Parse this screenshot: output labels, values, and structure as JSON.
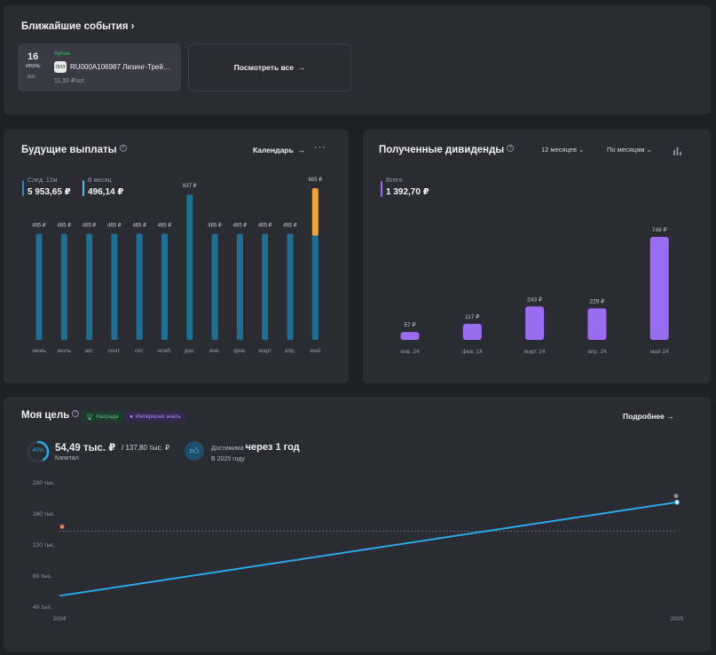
{
  "events": {
    "title": "Ближайшие события",
    "chevron": "›",
    "item": {
      "day": "16",
      "month": "июнь",
      "weekday": "вск",
      "type": "Купон",
      "ticker_logo": "ЛИЗ",
      "name": "RU000A106987 Лизинг-Трей…",
      "amount": "11,92 ₽/шт."
    },
    "see_all": "Посмотреть все",
    "arrow": "→"
  },
  "payouts": {
    "title": "Будущие выплаты",
    "calendar_label": "Календарь",
    "next12_label": "След. 12м",
    "next12_value": "5 953,65 ₽",
    "monthly_label": "В месяц",
    "monthly_value": "496,14 ₽"
  },
  "dividends": {
    "title": "Полученные дивиденды",
    "period_select": "12 месяцев",
    "group_select": "По месяцам",
    "total_label": "Всего",
    "total_value": "1 392,70 ₽"
  },
  "goal": {
    "title": "Моя цель",
    "badge_reward": "Награда",
    "badge_info": "Интересно знать",
    "more_label": "Подробнее",
    "progress_percent": "40%",
    "progress_fraction": 0.4,
    "capital_value": "54,49 тыс. ₽",
    "capital_target": "/ 137,80 тыс. ₽",
    "capital_label": "Капитал",
    "reach_prefix": "Достижима",
    "reach_value": "через 1 год",
    "reach_year": "В 2025 году"
  },
  "colors": {
    "payout_bar": "#1f6f95",
    "payout_bar_highlight": "#f0a53b",
    "dividend_bar": "#9a6cf0",
    "goal_line": "#29a9e6",
    "accent_green": "#35c26a",
    "accent_purple": "#a07bf0"
  },
  "chart_data": [
    {
      "type": "bar",
      "title": "Будущие выплаты",
      "categories": [
        "июнь",
        "июль",
        "авг.",
        "сент.",
        "окт.",
        "нояб.",
        "дек.",
        "янв.",
        "фев.",
        "март",
        "апр.",
        "май"
      ],
      "series": [
        {
          "values": [
            465,
            465,
            465,
            465,
            465,
            465,
            465,
            465,
            465,
            465,
            465,
            465
          ]
        },
        {
          "values": [
            0,
            0,
            0,
            0,
            0,
            0,
            172,
            0,
            0,
            0,
            0,
            200
          ]
        }
      ],
      "data_labels": [
        "465 ₽",
        "465 ₽",
        "465 ₽",
        "465 ₽",
        "465 ₽",
        "465 ₽",
        "637 ₽",
        "465 ₽",
        "465 ₽",
        "465 ₽",
        "465 ₽",
        "665 ₽"
      ],
      "ylim": [
        0,
        700
      ]
    },
    {
      "type": "bar",
      "title": "Полученные дивиденды",
      "categories": [
        "янв. 24",
        "фев. 24",
        "март 24",
        "апр. 24",
        "май 24"
      ],
      "values": [
        57,
        117,
        243,
        229,
        748
      ],
      "data_labels": [
        "57 ₽",
        "117 ₽",
        "243 ₽",
        "229 ₽",
        "748 ₽"
      ],
      "ylim": [
        0,
        760
      ]
    },
    {
      "type": "line",
      "title": "Моя цель",
      "x": [
        "2024",
        "2025"
      ],
      "series": [
        {
          "values": [
            54.49,
            175
          ]
        }
      ],
      "target": 137.8,
      "yticks": [
        "200 тыс.",
        "160 тыс.",
        "120 тыс.",
        "80 тыс.",
        "40 тыс."
      ],
      "ytick_values": [
        200,
        160,
        120,
        80,
        40
      ],
      "ylim": [
        40,
        200
      ]
    }
  ]
}
